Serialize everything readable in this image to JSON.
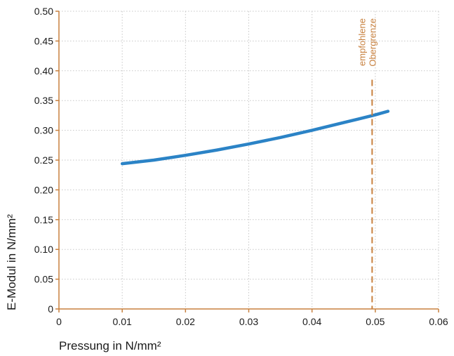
{
  "chart_data": {
    "type": "line",
    "xlabel": "Pressung in N/mm²",
    "ylabel": "E-Modul in N/mm²",
    "xlim": [
      0,
      0.06
    ],
    "ylim": [
      0,
      0.5
    ],
    "x_ticks": [
      "0",
      "0.01",
      "0.02",
      "0.03",
      "0.04",
      "0.05",
      "0.06"
    ],
    "x_tick_values": [
      0,
      0.01,
      0.02,
      0.03,
      0.04,
      0.05,
      0.06
    ],
    "y_ticks": [
      "0",
      "0.05",
      "0.10",
      "0.15",
      "0.20",
      "0.25",
      "0.30",
      "0.35",
      "0.40",
      "0.45",
      "0.50"
    ],
    "y_tick_values": [
      0,
      0.05,
      0.1,
      0.15,
      0.2,
      0.25,
      0.3,
      0.35,
      0.4,
      0.45,
      0.5
    ],
    "grid": true,
    "series": [
      {
        "color": "#2b83c6",
        "x": [
          0.01,
          0.015,
          0.02,
          0.025,
          0.03,
          0.035,
          0.04,
          0.045,
          0.05,
          0.052
        ],
        "y": [
          0.244,
          0.25,
          0.258,
          0.267,
          0.277,
          0.288,
          0.3,
          0.313,
          0.326,
          0.332
        ]
      }
    ],
    "annotations": [
      {
        "type": "vline",
        "x": 0.0495,
        "label_lines": [
          "empfohlene",
          "Obergrenze"
        ],
        "color": "#c8813f"
      }
    ],
    "axis_color": "#c8813f",
    "grid_color": "#c7c7c7"
  }
}
